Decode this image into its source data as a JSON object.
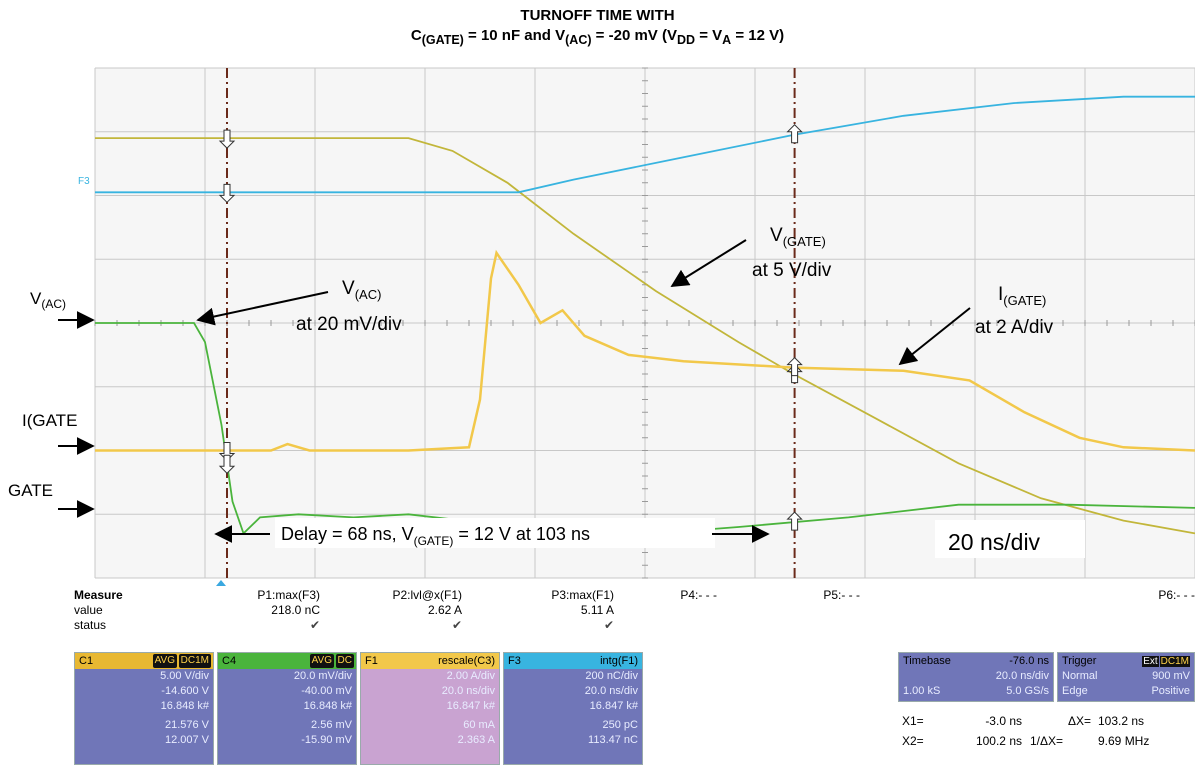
{
  "title": {
    "line1": "TURNOFF TIME WITH",
    "line2_parts": [
      "C",
      "(GATE)",
      " = 10 nF and V",
      "(AC)",
      " = -20 mV (V",
      "DD",
      " = V",
      "A",
      " = 12 V)"
    ]
  },
  "annotations": {
    "v_ac_left": [
      "V",
      "(AC)"
    ],
    "i_gate_left": "I(GATE",
    "gate_left": "GATE",
    "v_ac_callout": [
      "V",
      "(AC)",
      "at 20 mV/div"
    ],
    "v_gate_callout": [
      "V",
      "(GATE)",
      "at 5 V/div"
    ],
    "i_gate_callout": [
      "I",
      "(GATE)",
      "at 2 A/div"
    ],
    "delay_text": [
      "Delay = 68 ns,  V",
      "(GATE)",
      " = 12 V at  103 ns"
    ],
    "timebase_text": "20 ns/div",
    "f3_label": "F3"
  },
  "colors": {
    "grid_bg": "#f4f4f4",
    "grid_line": "#c8c8c8",
    "f3": "#38b4e0",
    "gate_voltage": "#c2b63a",
    "gate_current": "#f2c84a",
    "vac": "#4ab43c",
    "cursor": "#6a2a1a"
  },
  "chart_data": {
    "type": "line",
    "title": "TURNOFF TIME WITH C(GATE) = 10 nF and V(AC) = -20 mV (VDD = VA = 12 V)",
    "xlabel": "",
    "ylabel": "",
    "x_unit": "ns",
    "xlim": [
      -27,
      173
    ],
    "ylim_div": [
      -4,
      4
    ],
    "grid": true,
    "cursors_ns": [
      -3.0,
      100.2
    ],
    "series": [
      {
        "name": "V(GATE)",
        "scale": "5 V/div",
        "points": [
          [
            -27,
            2.9
          ],
          [
            30,
            2.9
          ],
          [
            38,
            2.7
          ],
          [
            48,
            2.2
          ],
          [
            60,
            1.4
          ],
          [
            75,
            0.5
          ],
          [
            90,
            -0.3
          ],
          [
            100,
            -0.8
          ],
          [
            115,
            -1.5
          ],
          [
            130,
            -2.2
          ],
          [
            145,
            -2.75
          ],
          [
            160,
            -3.1
          ],
          [
            173,
            -3.3
          ]
        ]
      },
      {
        "name": "I(GATE)",
        "scale": "2 A/div",
        "points": [
          [
            -27,
            -2.0
          ],
          [
            5,
            -2.0
          ],
          [
            8,
            -1.9
          ],
          [
            12,
            -2.0
          ],
          [
            22,
            -2.0
          ],
          [
            30,
            -2.0
          ],
          [
            41,
            -1.95
          ],
          [
            43,
            -1.2
          ],
          [
            45,
            0.7
          ],
          [
            46,
            1.1
          ],
          [
            50,
            0.6
          ],
          [
            54,
            0.0
          ],
          [
            58,
            0.2
          ],
          [
            62,
            -0.2
          ],
          [
            70,
            -0.5
          ],
          [
            80,
            -0.6
          ],
          [
            100,
            -0.7
          ],
          [
            120,
            -0.75
          ],
          [
            132,
            -0.9
          ],
          [
            142,
            -1.4
          ],
          [
            152,
            -1.8
          ],
          [
            160,
            -1.95
          ],
          [
            173,
            -2.0
          ]
        ]
      },
      {
        "name": "V(AC)",
        "scale": "20 mV/div",
        "points": [
          [
            -27,
            0.0
          ],
          [
            -9,
            0.0
          ],
          [
            -7,
            -0.3
          ],
          [
            -4,
            -1.6
          ],
          [
            -2,
            -2.8
          ],
          [
            0,
            -3.3
          ],
          [
            3,
            -3.05
          ],
          [
            10,
            -3.0
          ],
          [
            20,
            -3.05
          ],
          [
            30,
            -3.0
          ],
          [
            40,
            -3.1
          ],
          [
            60,
            -3.4
          ],
          [
            90,
            -3.2
          ],
          [
            110,
            -3.05
          ],
          [
            130,
            -2.85
          ],
          [
            150,
            -2.85
          ],
          [
            173,
            -2.9
          ]
        ]
      },
      {
        "name": "F3",
        "scale": "200 nC/div",
        "points": [
          [
            -27,
            2.05
          ],
          [
            50,
            2.05
          ],
          [
            60,
            2.25
          ],
          [
            80,
            2.6
          ],
          [
            100,
            2.95
          ],
          [
            120,
            3.25
          ],
          [
            140,
            3.45
          ],
          [
            160,
            3.55
          ],
          [
            173,
            3.55
          ]
        ]
      }
    ]
  },
  "measure": {
    "header": "Measure",
    "value_label": "value",
    "status_label": "status",
    "check": "✔",
    "params": [
      {
        "name": "P1:max(F3)",
        "value": "218.0 nC",
        "status": true
      },
      {
        "name": "P2:lvl@x(F1)",
        "value": "2.62 A",
        "status": true
      },
      {
        "name": "P3:max(F1)",
        "value": "5.11 A",
        "status": true
      },
      {
        "name": "P4:- - -",
        "value": "",
        "status": false
      },
      {
        "name": "P5:- - -",
        "value": "",
        "status": false
      },
      {
        "name": "P6:- - -",
        "value": "",
        "status": false
      }
    ]
  },
  "channels": [
    {
      "name": "C1",
      "tags": [
        "AVG",
        "DC1M"
      ],
      "color": "#e8b832",
      "bg": "#7076b8",
      "rows": [
        "5.00 V/div",
        "-14.600 V",
        "16.848 k#",
        "21.576 V",
        "12.007 V"
      ]
    },
    {
      "name": "C4",
      "tags": [
        "AVG",
        "DC"
      ],
      "color": "#4ab43c",
      "bg": "#7076b8",
      "rows": [
        "20.0 mV/div",
        "-40.00 mV",
        "16.848 k#",
        "2.56 mV",
        "-15.90 mV"
      ]
    },
    {
      "name": "F1",
      "tags": [
        "rescale(C3)"
      ],
      "color": "#f2c84a",
      "bg": "#c9a3d1",
      "rows": [
        "2.00 A/div",
        "20.0 ns/div",
        "16.847 k#",
        "60 mA",
        "2.363 A"
      ]
    },
    {
      "name": "F3",
      "tags": [
        "intg(F1)"
      ],
      "color": "#38b4e0",
      "bg": "#7076b8",
      "rows": [
        "200 nC/div",
        "20.0 ns/div",
        "16.847 k#",
        "250 pC",
        "113.47 nC"
      ]
    }
  ],
  "timebase": {
    "label": "Timebase",
    "offset": "-76.0 ns",
    "per_div": "20.0 ns/div",
    "samples": "1.00 kS",
    "rate": "5.0 GS/s"
  },
  "trigger": {
    "label": "Trigger",
    "tags": [
      "Ext",
      "DC1M"
    ],
    "mode": "Normal",
    "level": "900 mV",
    "type": "Edge",
    "slope": "Positive"
  },
  "cursor_readout": {
    "x1": "X1=",
    "x1_val": "-3.0 ns",
    "dx": "ΔX=",
    "dx_val": "103.2 ns",
    "x2": "X2=",
    "x2_val": "100.2 ns",
    "inv_dx": "1/ΔX=",
    "inv_dx_val": "9.69 MHz"
  }
}
